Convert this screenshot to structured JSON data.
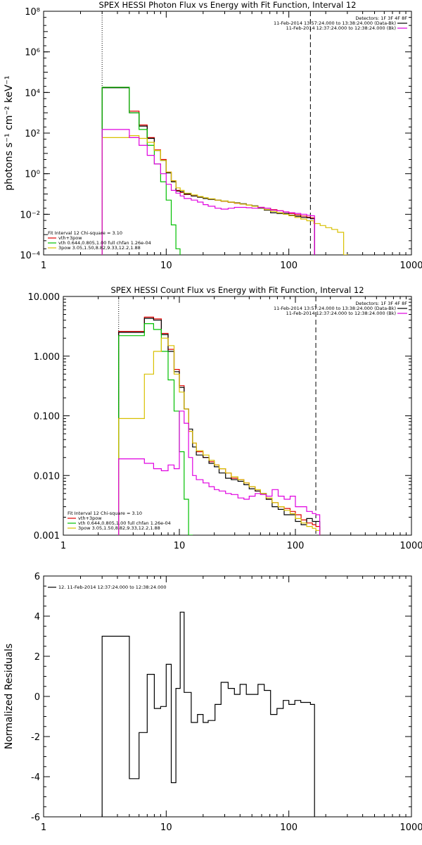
{
  "panels": [
    {
      "title": "SPEX HESSI Photon Flux vs Energy with Fit Function, Interval 12",
      "ylabel": "photons s⁻¹ cm⁻² keV⁻¹",
      "legend_right": [
        {
          "text": "Detectors: 1F 3F 4F 8F",
          "color": "#000000",
          "line": false
        },
        {
          "text": "11-Feb-2014 13:57:24.000 to 13:38:24.000 (Data-Bk)",
          "color": "#000000",
          "line": true
        },
        {
          "text": "11-Feb-2014 12:37:24.000 to 12:38:24.000 (Bk)",
          "color": "#e000e0",
          "line": true
        }
      ],
      "legend_left": [
        {
          "text": "Fit Interval 12   Chi-square = 3.10",
          "color": "#000000",
          "line": false
        },
        {
          "text": "vth+3pow",
          "color": "#e00000",
          "line": true
        },
        {
          "text": "vth 0.644,0.805,1.00  full chfan 1.26e-04",
          "color": "#00c000",
          "line": true
        },
        {
          "text": "3pow  3.05,1.50,8.82,9.33,12.2,1.88",
          "color": "#d8c000",
          "line": true
        }
      ]
    },
    {
      "title": "SPEX HESSI Count Flux vs Energy with Fit Function, Interval 12",
      "ylabel": "",
      "legend_right": [
        {
          "text": "Detectors: 1F 3F 4F 8F",
          "color": "#000000",
          "line": false
        },
        {
          "text": "11-Feb-2014 13:57:24.000 to 13:38:24.000 (Data-Bk)",
          "color": "#000000",
          "line": true
        },
        {
          "text": "11-Feb-2014 12:37:24.000 to 12:38:24.000 (Bk)",
          "color": "#e000e0",
          "line": true
        }
      ],
      "legend_left": [
        {
          "text": "Fit Interval 12   Chi-square = 3.10",
          "color": "#000000",
          "line": false
        },
        {
          "text": "vth+3pow",
          "color": "#e00000",
          "line": true
        },
        {
          "text": "vth 0.644,0.805,1.00  full chfan 1.26e-04",
          "color": "#00c000",
          "line": true
        },
        {
          "text": "3pow  3.05,1.50,8.82,9.33,12.2,1.88",
          "color": "#d8c000",
          "line": true
        }
      ]
    },
    {
      "title": "",
      "ylabel": "Normalized Residuals",
      "legend_right": [],
      "legend_left": [
        {
          "text": "12. 11-Feb-2014 12:37:24.000 to 12:38:24.000",
          "color": "#000000",
          "line": true
        }
      ]
    }
  ],
  "chart_data": [
    {
      "type": "line",
      "title": "SPEX HESSI Photon Flux vs Energy with Fit Function, Interval 12",
      "xlabel": "",
      "ylabel": "photons s^-1 cm^-2 keV^-1",
      "xscale": "log",
      "yscale": "log",
      "xlim": [
        1,
        1000
      ],
      "ylim": [
        0.0001,
        100000000
      ],
      "xticks": [
        1,
        10,
        100,
        1000
      ],
      "xticklabels": [
        "1",
        "10",
        "100",
        "1000"
      ],
      "yticks": [
        0.0001,
        0.01,
        1,
        100,
        10000,
        1000000,
        100000000
      ],
      "yticklabels": [
        "10⁻⁴",
        "10⁻²",
        "10⁰",
        "10²",
        "10⁴",
        "10⁶",
        "10⁸"
      ],
      "vlines": [
        {
          "x": 3,
          "style": "dotted"
        },
        {
          "x": 150,
          "style": "dashed"
        }
      ],
      "series": [
        {
          "name": "vth+3pow",
          "color": "#e00000",
          "step": true,
          "x": [
            3,
            4,
            5,
            6,
            7,
            8,
            9,
            10,
            11,
            12,
            13,
            14,
            16,
            18,
            20,
            22,
            25,
            28,
            32,
            36,
            40,
            45,
            50,
            56,
            63,
            71,
            80,
            90,
            100,
            112,
            125,
            140,
            150
          ],
          "y": [
            18000,
            18000,
            1200,
            250,
            60,
            15,
            5,
            1.2,
            0.45,
            0.15,
            0.12,
            0.095,
            0.08,
            0.07,
            0.062,
            0.055,
            0.05,
            0.044,
            0.039,
            0.035,
            0.032,
            0.028,
            0.025,
            0.022,
            0.02,
            0.017,
            0.015,
            0.013,
            0.011,
            0.0095,
            0.0082,
            0.0072,
            0.0067
          ]
        },
        {
          "name": "Data-Bk",
          "color": "#000000",
          "step": true,
          "x": [
            3,
            4,
            5,
            6,
            7,
            8,
            9,
            10,
            11,
            12,
            13,
            14,
            16,
            18,
            20,
            22,
            25,
            28,
            32,
            36,
            40,
            45,
            50,
            56,
            63,
            71,
            80,
            90,
            100,
            112,
            125,
            140,
            150
          ],
          "y": [
            17000,
            17000,
            1000,
            220,
            55,
            14,
            4.5,
            1.1,
            0.4,
            0.14,
            0.13,
            0.1,
            0.08,
            0.07,
            0.06,
            0.055,
            0.05,
            0.045,
            0.04,
            0.037,
            0.033,
            0.028,
            0.026,
            0.02,
            0.016,
            0.012,
            0.011,
            0.011,
            0.009,
            0.008,
            0.007,
            0.0068,
            0.006
          ]
        },
        {
          "name": "vth",
          "color": "#00c000",
          "step": true,
          "x": [
            3,
            4,
            5,
            6,
            7,
            8,
            9,
            10,
            11,
            12
          ],
          "y": [
            18000,
            18000,
            1000,
            150,
            25,
            3,
            0.4,
            0.05,
            0.003,
            0.0002
          ]
        },
        {
          "name": "3pow",
          "color": "#d8c000",
          "step": true,
          "x": [
            3,
            4,
            5,
            6,
            7,
            8,
            9,
            10,
            11,
            12,
            13,
            14,
            16,
            18,
            20,
            22,
            25,
            28,
            32,
            36,
            40,
            45,
            50,
            56,
            63,
            71,
            80,
            90,
            100,
            112,
            125,
            140,
            160,
            180,
            200,
            224,
            250,
            280
          ],
          "y": [
            60,
            60,
            75,
            55,
            35,
            14,
            4.5,
            1.2,
            0.45,
            0.2,
            0.15,
            0.11,
            0.09,
            0.075,
            0.065,
            0.058,
            0.05,
            0.045,
            0.04,
            0.036,
            0.032,
            0.028,
            0.025,
            0.021,
            0.017,
            0.014,
            0.012,
            0.01,
            0.0085,
            0.007,
            0.0058,
            0.0048,
            0.0035,
            0.0028,
            0.0022,
            0.0018,
            0.0013,
            1e-05
          ]
        },
        {
          "name": "Bk",
          "color": "#e000e0",
          "step": true,
          "x": [
            3,
            4,
            5,
            6,
            7,
            8,
            9,
            10,
            11,
            12,
            13,
            14,
            16,
            18,
            20,
            22,
            25,
            28,
            32,
            36,
            40,
            45,
            50,
            56,
            63,
            71,
            80,
            90,
            100,
            112,
            125,
            140,
            150
          ],
          "y": [
            150,
            150,
            60,
            25,
            8,
            3,
            1,
            0.3,
            0.15,
            0.11,
            0.08,
            0.06,
            0.05,
            0.04,
            0.03,
            0.025,
            0.02,
            0.018,
            0.02,
            0.022,
            0.022,
            0.021,
            0.02,
            0.022,
            0.02,
            0.016,
            0.015,
            0.013,
            0.012,
            0.011,
            0.01,
            0.009,
            0.0085
          ]
        }
      ]
    },
    {
      "type": "line",
      "title": "SPEX HESSI Count Flux vs Energy with Fit Function, Interval 12",
      "xlabel": "",
      "ylabel": "",
      "xscale": "log",
      "yscale": "log",
      "xlim": [
        1,
        1000
      ],
      "ylim": [
        0.001,
        10
      ],
      "xticks": [
        1,
        10,
        100,
        1000
      ],
      "xticklabels": [
        "1",
        "10",
        "100",
        "1000"
      ],
      "yticks": [
        0.001,
        0.01,
        0.1,
        1,
        10
      ],
      "yticklabels": [
        "0.001",
        "0.010",
        "0.100",
        "1.000",
        "10.000"
      ],
      "vlines": [
        {
          "x": 3,
          "style": "dotted"
        },
        {
          "x": 150,
          "style": "dashed"
        }
      ],
      "series": [
        {
          "name": "vth+3pow",
          "color": "#e00000",
          "step": true,
          "x": [
            3,
            4,
            5,
            6,
            7,
            8,
            9,
            10,
            11,
            12,
            13,
            14,
            16,
            18,
            20,
            22,
            25,
            28,
            32,
            36,
            40,
            45,
            50,
            56,
            63,
            71,
            80,
            90,
            100,
            112,
            125,
            140,
            150
          ],
          "y": [
            2.6,
            2.6,
            4.5,
            4.2,
            2.4,
            1.3,
            0.6,
            0.32,
            0.13,
            0.055,
            0.035,
            0.025,
            0.02,
            0.017,
            0.015,
            0.013,
            0.011,
            0.009,
            0.0085,
            0.0075,
            0.0065,
            0.0055,
            0.005,
            0.004,
            0.0035,
            0.003,
            0.0028,
            0.0025,
            0.0022,
            0.0018,
            0.0016,
            0.0015,
            0.0014
          ]
        },
        {
          "name": "Data-Bk",
          "color": "#000000",
          "step": true,
          "x": [
            3,
            4,
            5,
            6,
            7,
            8,
            9,
            10,
            11,
            12,
            13,
            14,
            16,
            18,
            20,
            22,
            25,
            28,
            32,
            36,
            40,
            45,
            50,
            56,
            63,
            71,
            80,
            90,
            100,
            112,
            125,
            140,
            150
          ],
          "y": [
            2.5,
            2.5,
            4.3,
            4.0,
            2.3,
            1.2,
            0.55,
            0.3,
            0.13,
            0.06,
            0.03,
            0.022,
            0.02,
            0.016,
            0.014,
            0.011,
            0.009,
            0.0085,
            0.008,
            0.007,
            0.006,
            0.0055,
            0.005,
            0.004,
            0.003,
            0.0027,
            0.0022,
            0.0022,
            0.0017,
            0.0015,
            0.0019,
            0.0017,
            0.0017
          ]
        },
        {
          "name": "vth",
          "color": "#00c000",
          "step": true,
          "x": [
            3,
            4,
            5,
            6,
            7,
            8,
            9,
            10,
            11,
            12
          ],
          "y": [
            2.2,
            2.2,
            3.5,
            2.8,
            1.2,
            0.4,
            0.12,
            0.025,
            0.004,
            0.0005
          ]
        },
        {
          "name": "3pow",
          "color": "#d8c000",
          "step": true,
          "x": [
            3,
            4,
            5,
            6,
            7,
            8,
            9,
            10,
            11,
            12,
            13,
            14,
            16,
            18,
            20,
            22,
            25,
            28,
            32,
            36,
            40,
            45,
            50,
            56,
            63,
            71,
            80,
            90,
            100,
            112,
            125,
            140,
            150
          ],
          "y": [
            0.09,
            0.09,
            0.5,
            1.2,
            2.0,
            1.5,
            0.5,
            0.25,
            0.13,
            0.055,
            0.035,
            0.026,
            0.022,
            0.018,
            0.015,
            0.013,
            0.011,
            0.0095,
            0.0085,
            0.0075,
            0.0065,
            0.0058,
            0.005,
            0.0042,
            0.0035,
            0.003,
            0.0026,
            0.0023,
            0.0019,
            0.0016,
            0.0014,
            0.0013,
            0.0012
          ]
        },
        {
          "name": "Bk",
          "color": "#e000e0",
          "step": true,
          "x": [
            3,
            4,
            5,
            6,
            7,
            8,
            9,
            10,
            11,
            12,
            13,
            14,
            16,
            18,
            20,
            22,
            25,
            28,
            32,
            36,
            40,
            45,
            50,
            56,
            63,
            71,
            80,
            90,
            100,
            112,
            125,
            140,
            150
          ],
          "y": [
            0.019,
            0.019,
            0.016,
            0.013,
            0.012,
            0.015,
            0.013,
            0.12,
            0.075,
            0.02,
            0.01,
            0.0085,
            0.0075,
            0.0065,
            0.0058,
            0.0055,
            0.005,
            0.0048,
            0.0042,
            0.004,
            0.0045,
            0.005,
            0.0048,
            0.0045,
            0.0058,
            0.0045,
            0.004,
            0.0045,
            0.003,
            0.003,
            0.0025,
            0.0023,
            0.0022
          ]
        }
      ]
    },
    {
      "type": "line",
      "title": "",
      "xlabel": "",
      "ylabel": "Normalized Residuals",
      "xscale": "log",
      "yscale": "linear",
      "xlim": [
        1,
        1000
      ],
      "ylim": [
        -6,
        6
      ],
      "xticks": [
        1,
        10,
        100,
        1000
      ],
      "xticklabels": [
        "1",
        "10",
        "100",
        "1000"
      ],
      "yticks": [
        -6,
        -4,
        -2,
        0,
        2,
        4,
        6
      ],
      "yticklabels": [
        "-6",
        "-4",
        "-2",
        "0",
        "2",
        "4",
        "6"
      ],
      "vlines": [],
      "series": [
        {
          "name": "12. 11-Feb-2014 12:37:24.000 to 12:38:24.000",
          "color": "#000000",
          "step": true,
          "x": [
            3,
            4,
            5,
            6,
            7,
            8,
            9,
            10,
            11,
            12,
            13,
            14,
            16,
            18,
            20,
            22,
            25,
            28,
            32,
            36,
            40,
            45,
            50,
            56,
            63,
            71,
            80,
            90,
            100,
            112,
            125,
            140,
            150
          ],
          "y": [
            3.0,
            3.0,
            -4.1,
            -1.8,
            1.1,
            -0.6,
            -0.5,
            1.6,
            -4.3,
            0.4,
            4.2,
            0.2,
            -1.3,
            -0.9,
            -1.3,
            -1.2,
            -0.4,
            0.7,
            0.4,
            0.1,
            0.6,
            0.1,
            0.1,
            0.6,
            0.3,
            -0.9,
            -0.6,
            -0.2,
            -0.4,
            -0.2,
            -0.3,
            -0.3,
            -0.4
          ]
        }
      ]
    }
  ]
}
